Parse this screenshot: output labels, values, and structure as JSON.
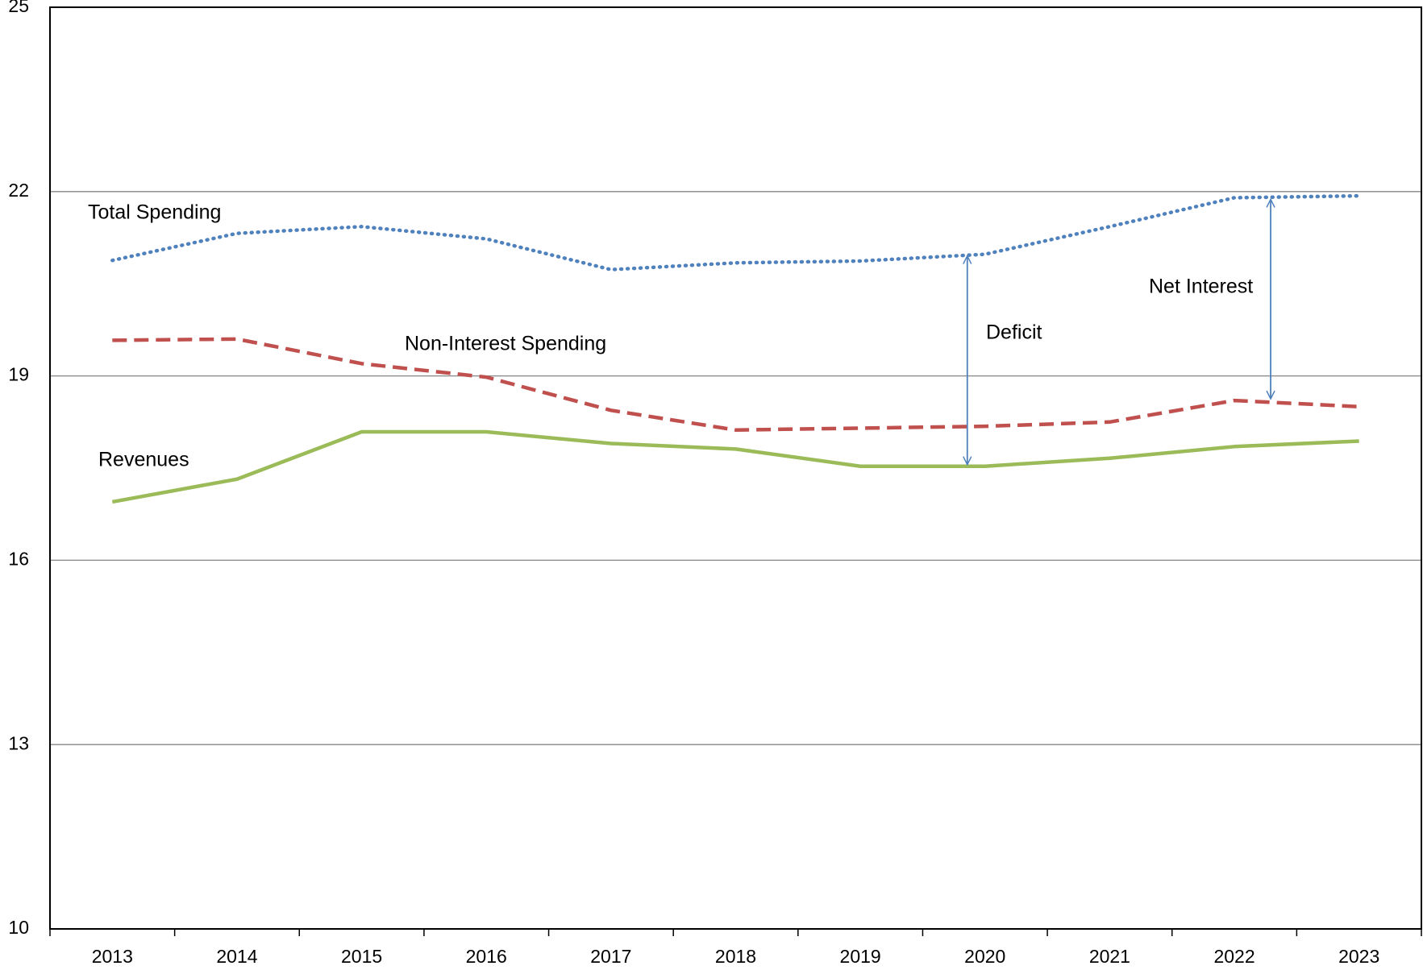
{
  "chart_data": {
    "type": "line",
    "categories": [
      "2013",
      "2014",
      "2015",
      "2016",
      "2017",
      "2018",
      "2019",
      "2020",
      "2021",
      "2022",
      "2023"
    ],
    "series": [
      {
        "name": "Total Spending",
        "color": "#4f81bd",
        "style": "dotted",
        "values": [
          20.88,
          21.32,
          21.43,
          21.23,
          20.73,
          20.84,
          20.87,
          20.98,
          21.43,
          21.9,
          21.93
        ]
      },
      {
        "name": "Non-Interest Spending",
        "color": "#c0504d",
        "style": "dashed",
        "values": [
          19.58,
          19.6,
          19.2,
          18.98,
          18.44,
          18.12,
          18.15,
          18.18,
          18.25,
          18.6,
          18.5
        ]
      },
      {
        "name": "Revenues",
        "color": "#9bbb59",
        "style": "solid",
        "values": [
          16.95,
          17.32,
          18.09,
          18.09,
          17.9,
          17.81,
          17.53,
          17.53,
          17.66,
          17.85,
          17.94
        ]
      }
    ],
    "annotations": [
      "Deficit",
      "Net Interest"
    ],
    "ylim": [
      10,
      25
    ],
    "yticks": [
      10,
      13,
      16,
      19,
      22,
      25
    ],
    "grid": true
  }
}
